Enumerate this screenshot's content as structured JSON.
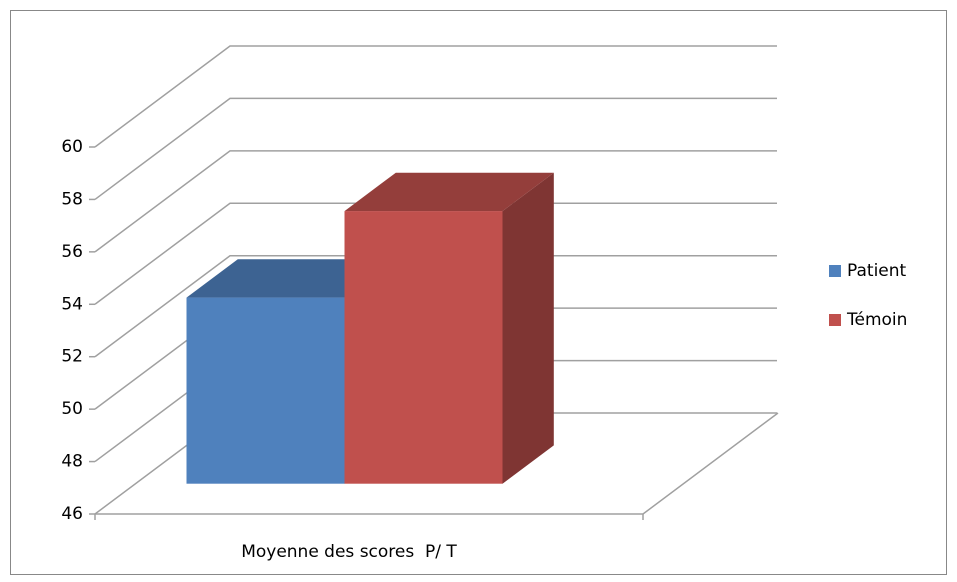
{
  "chart_data": {
    "type": "bar3d",
    "categories": [
      "Moyenne des scores  P/ T"
    ],
    "series": [
      {
        "name": "Patient",
        "color": "#4f81bd",
        "values": [
          53.1
        ]
      },
      {
        "name": "Témoin",
        "color": "#c0504d",
        "values": [
          56.4
        ]
      }
    ],
    "ylim": [
      46,
      60
    ],
    "yticks": [
      46,
      48,
      50,
      52,
      54,
      56,
      58,
      60
    ],
    "grid": true,
    "legend": "right"
  }
}
